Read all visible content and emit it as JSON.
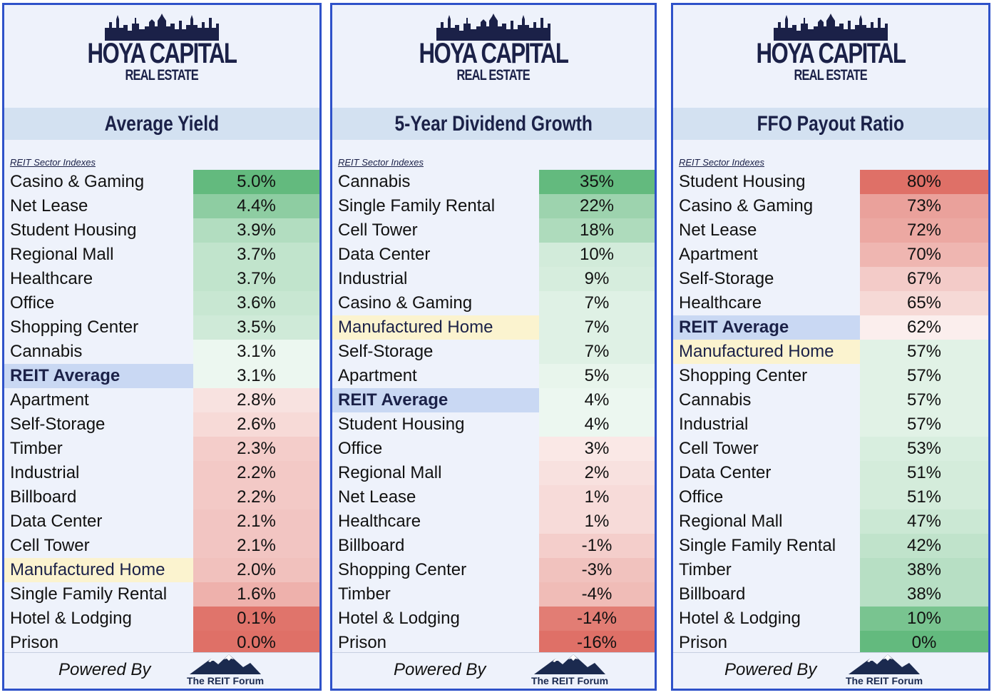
{
  "brand": {
    "name": "HOYA CAPITAL",
    "sub": "REAL ESTATE"
  },
  "footer": {
    "powered_by": "Powered By",
    "forum": "The REIT Forum"
  },
  "chart_data": [
    {
      "type": "table",
      "title": "Average Yield",
      "sector_label": "REIT Sector Indexes",
      "rows": [
        {
          "name": "Casino & Gaming",
          "value": "5.0%",
          "num": 5.0
        },
        {
          "name": "Net Lease",
          "value": "4.4%",
          "num": 4.4
        },
        {
          "name": "Student Housing",
          "value": "3.9%",
          "num": 3.9
        },
        {
          "name": "Regional Mall",
          "value": "3.7%",
          "num": 3.7
        },
        {
          "name": "Healthcare",
          "value": "3.7%",
          "num": 3.7
        },
        {
          "name": "Office",
          "value": "3.6%",
          "num": 3.6
        },
        {
          "name": "Shopping Center",
          "value": "3.5%",
          "num": 3.5
        },
        {
          "name": "Cannabis",
          "value": "3.1%",
          "num": 3.1
        },
        {
          "name": "REIT Average",
          "value": "3.1%",
          "num": 3.1,
          "highlight": "avg"
        },
        {
          "name": "Apartment",
          "value": "2.8%",
          "num": 2.8
        },
        {
          "name": "Self-Storage",
          "value": "2.6%",
          "num": 2.6
        },
        {
          "name": "Timber",
          "value": "2.3%",
          "num": 2.3
        },
        {
          "name": "Industrial",
          "value": "2.2%",
          "num": 2.2
        },
        {
          "name": "Billboard",
          "value": "2.2%",
          "num": 2.2
        },
        {
          "name": "Data Center",
          "value": "2.1%",
          "num": 2.1
        },
        {
          "name": "Cell Tower",
          "value": "2.1%",
          "num": 2.1
        },
        {
          "name": "Manufactured Home",
          "value": "2.0%",
          "num": 2.0,
          "highlight": "mh"
        },
        {
          "name": "Single Family Rental",
          "value": "1.6%",
          "num": 1.6
        },
        {
          "name": "Hotel & Lodging",
          "value": "0.1%",
          "num": 0.1
        },
        {
          "name": "Prison",
          "value": "0.0%",
          "num": 0.0
        }
      ]
    },
    {
      "type": "table",
      "title": "5-Year Dividend Growth",
      "sector_label": "REIT Sector Indexes",
      "rows": [
        {
          "name": "Cannabis",
          "value": "35%",
          "num": 35
        },
        {
          "name": "Single Family Rental",
          "value": "22%",
          "num": 22
        },
        {
          "name": "Cell Tower",
          "value": "18%",
          "num": 18
        },
        {
          "name": "Data Center",
          "value": "10%",
          "num": 10
        },
        {
          "name": "Industrial",
          "value": "9%",
          "num": 9
        },
        {
          "name": "Casino & Gaming",
          "value": "7%",
          "num": 7
        },
        {
          "name": "Manufactured Home",
          "value": "7%",
          "num": 7,
          "highlight": "mh"
        },
        {
          "name": "Self-Storage",
          "value": "7%",
          "num": 7
        },
        {
          "name": "Apartment",
          "value": "5%",
          "num": 5
        },
        {
          "name": "REIT Average",
          "value": "4%",
          "num": 4,
          "highlight": "avg"
        },
        {
          "name": "Student Housing",
          "value": "4%",
          "num": 4
        },
        {
          "name": "Office",
          "value": "3%",
          "num": 3
        },
        {
          "name": "Regional Mall",
          "value": "2%",
          "num": 2
        },
        {
          "name": "Net Lease",
          "value": "1%",
          "num": 1
        },
        {
          "name": "Healthcare",
          "value": "1%",
          "num": 1
        },
        {
          "name": "Billboard",
          "value": "-1%",
          "num": -1
        },
        {
          "name": "Shopping Center",
          "value": "-3%",
          "num": -3
        },
        {
          "name": "Timber",
          "value": "-4%",
          "num": -4
        },
        {
          "name": "Hotel & Lodging",
          "value": "-14%",
          "num": -14
        },
        {
          "name": "Prison",
          "value": "-16%",
          "num": -16
        }
      ]
    },
    {
      "type": "table",
      "title": "FFO Payout Ratio",
      "sector_label": "REIT Sector Indexes",
      "rows": [
        {
          "name": "Student Housing",
          "value": "80%",
          "num": 80
        },
        {
          "name": "Casino & Gaming",
          "value": "73%",
          "num": 73
        },
        {
          "name": "Net Lease",
          "value": "72%",
          "num": 72
        },
        {
          "name": "Apartment",
          "value": "70%",
          "num": 70
        },
        {
          "name": "Self-Storage",
          "value": "67%",
          "num": 67
        },
        {
          "name": "Healthcare",
          "value": "65%",
          "num": 65
        },
        {
          "name": "REIT Average",
          "value": "62%",
          "num": 62,
          "highlight": "avg"
        },
        {
          "name": "Manufactured Home",
          "value": "57%",
          "num": 57,
          "highlight": "mh"
        },
        {
          "name": "Shopping Center",
          "value": "57%",
          "num": 57
        },
        {
          "name": "Cannabis",
          "value": "57%",
          "num": 57
        },
        {
          "name": "Industrial",
          "value": "57%",
          "num": 57
        },
        {
          "name": "Cell Tower",
          "value": "53%",
          "num": 53
        },
        {
          "name": "Data Center",
          "value": "51%",
          "num": 51
        },
        {
          "name": "Office",
          "value": "51%",
          "num": 51
        },
        {
          "name": "Regional Mall",
          "value": "47%",
          "num": 47
        },
        {
          "name": "Single Family Rental",
          "value": "42%",
          "num": 42
        },
        {
          "name": "Timber",
          "value": "38%",
          "num": 38
        },
        {
          "name": "Billboard",
          "value": "38%",
          "num": 38
        },
        {
          "name": "Hotel & Lodging",
          "value": "10%",
          "num": 10
        },
        {
          "name": "Prison",
          "value": "0%",
          "num": 0
        }
      ]
    }
  ]
}
